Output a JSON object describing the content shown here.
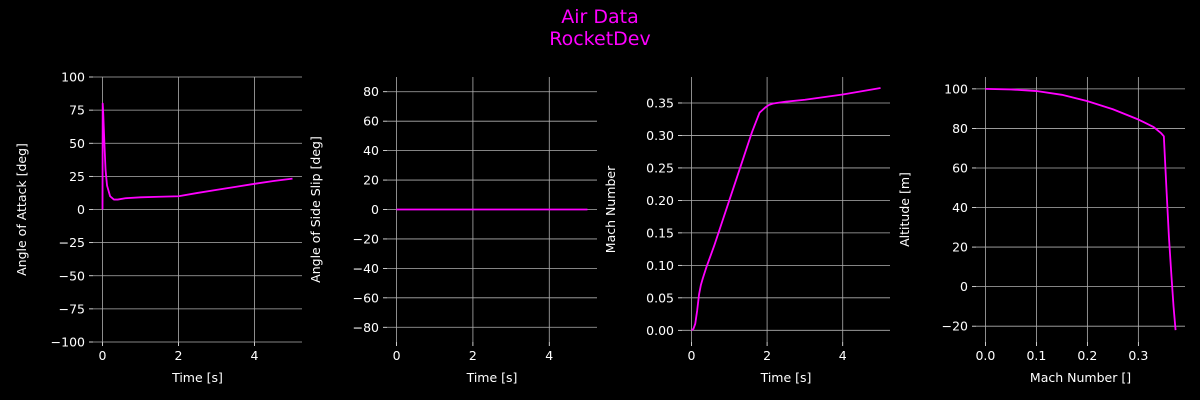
{
  "figure": {
    "title_line1": "Air Data",
    "title_line2": "RocketDev",
    "background": "#000000",
    "line_color": "#ff00ff",
    "grid_color": "#b0b0b0",
    "text_color": "#ffffff"
  },
  "chart_data": [
    {
      "type": "line",
      "xlabel": "Time [s]",
      "ylabel": "Angle of Attack [deg]",
      "xlim": [
        -0.25,
        5.25
      ],
      "ylim": [
        -100,
        100
      ],
      "xticks": [
        0,
        2,
        4
      ],
      "yticks": [
        -100,
        -75,
        -50,
        -25,
        0,
        25,
        50,
        75,
        100
      ],
      "grid": true,
      "series": [
        {
          "x": [
            0.0,
            0.005,
            0.02,
            0.05,
            0.08,
            0.12,
            0.2,
            0.3,
            0.4,
            0.6,
            1.0,
            1.5,
            2.0,
            2.5,
            3.0,
            3.5,
            4.0,
            4.5,
            5.0
          ],
          "y": [
            0,
            80,
            72,
            50,
            30,
            18,
            10,
            7.5,
            7.5,
            8.5,
            9.2,
            9.6,
            10,
            12.5,
            14.8,
            17.1,
            19.4,
            21.5,
            23.3
          ]
        }
      ]
    },
    {
      "type": "line",
      "xlabel": "Time [s]",
      "ylabel": "Angle of Side Slip [deg]",
      "xlim": [
        -0.25,
        5.25
      ],
      "ylim": [
        -90,
        90
      ],
      "xticks": [
        0,
        2,
        4
      ],
      "yticks": [
        -80,
        -60,
        -40,
        -20,
        0,
        20,
        40,
        60,
        80
      ],
      "grid": true,
      "series": [
        {
          "x": [
            0,
            1,
            2,
            3,
            4,
            5
          ],
          "y": [
            0,
            0,
            0,
            0,
            0,
            0
          ]
        }
      ]
    },
    {
      "type": "line",
      "xlabel": "Time [s]",
      "ylabel": "Mach Number",
      "xlim": [
        -0.25,
        5.25
      ],
      "ylim": [
        -0.018,
        0.39
      ],
      "xticks": [
        0,
        2,
        4
      ],
      "yticks": [
        0.0,
        0.05,
        0.1,
        0.15,
        0.2,
        0.25,
        0.3,
        0.35
      ],
      "ytick_labels": [
        "0.00",
        "0.05",
        "0.10",
        "0.15",
        "0.20",
        "0.25",
        "0.30",
        "0.35"
      ],
      "grid": true,
      "series": [
        {
          "x": [
            0.0,
            0.05,
            0.1,
            0.15,
            0.2,
            0.25,
            0.3,
            0.4,
            0.6,
            0.8,
            1.0,
            1.2,
            1.4,
            1.6,
            1.8,
            1.95,
            2.05,
            2.15,
            2.25,
            2.5,
            3.0,
            3.5,
            4.0,
            4.5,
            5.0
          ],
          "y": [
            0.0,
            0.002,
            0.01,
            0.03,
            0.055,
            0.07,
            0.08,
            0.098,
            0.13,
            0.165,
            0.2,
            0.235,
            0.27,
            0.305,
            0.335,
            0.343,
            0.347,
            0.349,
            0.35,
            0.352,
            0.355,
            0.359,
            0.363,
            0.368,
            0.373
          ]
        }
      ]
    },
    {
      "type": "line",
      "xlabel": "Mach Number []",
      "ylabel": "Altitude [m]",
      "xlim": [
        -0.0185,
        0.3915
      ],
      "ylim": [
        -28,
        106
      ],
      "xticks": [
        0.0,
        0.1,
        0.2,
        0.3
      ],
      "xtick_labels": [
        "0.0",
        "0.1",
        "0.2",
        "0.3"
      ],
      "yticks": [
        -20,
        0,
        20,
        40,
        60,
        80,
        100
      ],
      "grid": true,
      "series": [
        {
          "x": [
            0.0,
            0.05,
            0.1,
            0.15,
            0.2,
            0.25,
            0.3,
            0.33,
            0.345,
            0.35,
            0.355,
            0.36,
            0.365,
            0.369,
            0.373
          ],
          "y": [
            100,
            99.7,
            98.9,
            97,
            93.8,
            89.7,
            84.5,
            80.7,
            77.5,
            76,
            50,
            25,
            5,
            -10,
            -22
          ]
        }
      ]
    }
  ]
}
